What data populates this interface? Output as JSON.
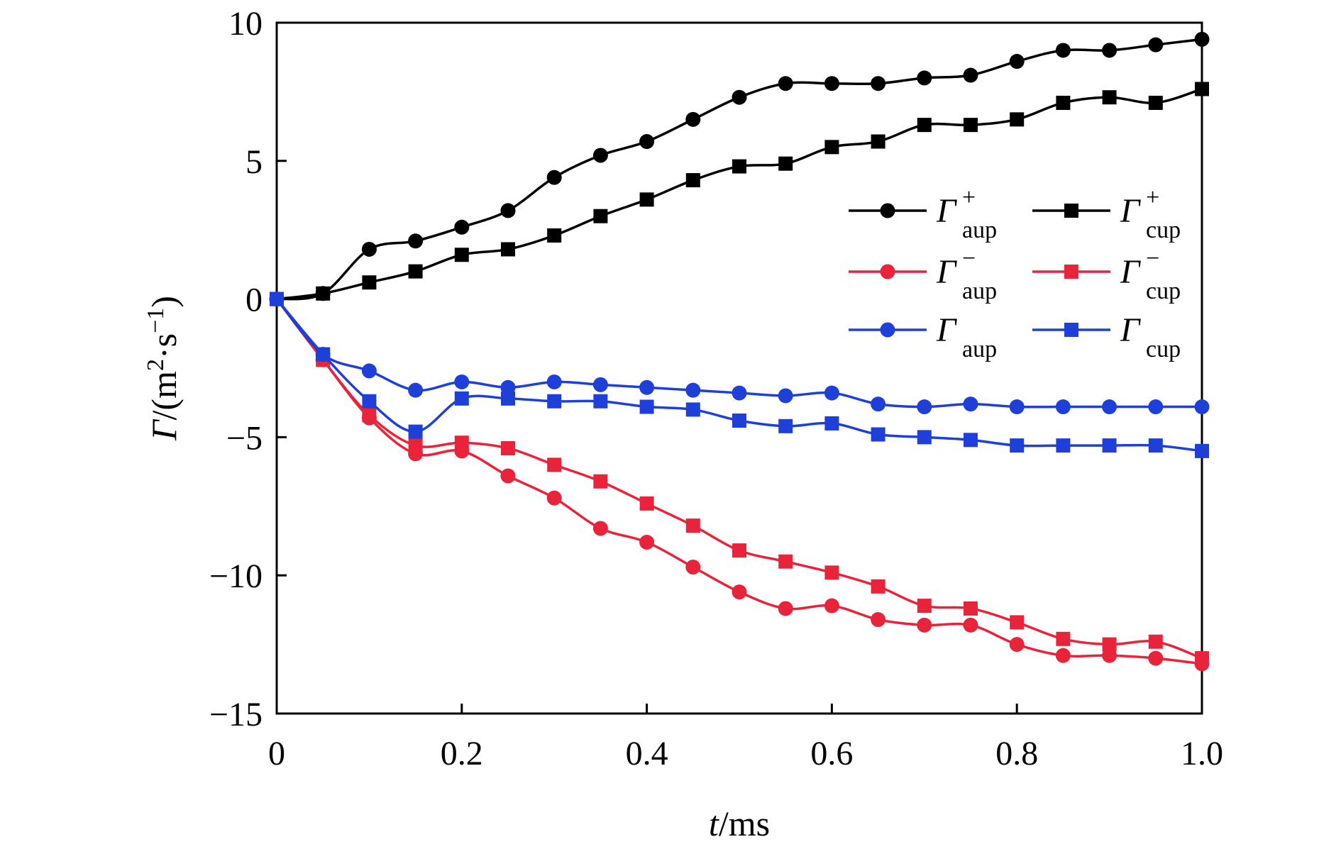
{
  "chart_data": {
    "type": "line",
    "title": "",
    "xlabel_italic": "t",
    "xlabel_unit": "/ms",
    "ylabel_italic": "Γ",
    "ylabel_unit_pre": "/(m",
    "ylabel_unit_sup1": "2",
    "ylabel_unit_mid": "·s",
    "ylabel_unit_sup2": "−1",
    "ylabel_unit_post": ")",
    "xlim": [
      0,
      1.0
    ],
    "ylim": [
      -15,
      10
    ],
    "xticks": [
      0,
      0.2,
      0.4,
      0.6,
      0.8,
      1.0
    ],
    "xtick_labels": [
      "0",
      "0.2",
      "0.4",
      "0.6",
      "0.8",
      "1.0"
    ],
    "yticks": [
      10,
      5,
      0,
      -5,
      -10,
      -15
    ],
    "ytick_labels": [
      "10",
      "5",
      "0",
      "−5",
      "−10",
      "−15"
    ],
    "grid": false,
    "legend_position": "right",
    "x": [
      0,
      0.05,
      0.1,
      0.15,
      0.2,
      0.25,
      0.3,
      0.35,
      0.4,
      0.45,
      0.5,
      0.55,
      0.6,
      0.65,
      0.7,
      0.75,
      0.8,
      0.85,
      0.9,
      0.95,
      1.0
    ],
    "series": [
      {
        "symbol": "Γ",
        "sup": "+",
        "sub": "aup",
        "marker": "circle",
        "color": "#000000",
        "values": [
          0,
          0.2,
          1.8,
          2.1,
          2.6,
          3.2,
          4.4,
          5.2,
          5.7,
          6.5,
          7.3,
          7.8,
          7.8,
          7.8,
          8.0,
          8.1,
          8.6,
          9.0,
          9.0,
          9.2,
          9.4
        ]
      },
      {
        "symbol": "Γ",
        "sup": "+",
        "sub": "cup",
        "marker": "square",
        "color": "#000000",
        "values": [
          0,
          0.2,
          0.6,
          1.0,
          1.6,
          1.8,
          2.3,
          3.0,
          3.6,
          4.3,
          4.8,
          4.9,
          5.5,
          5.7,
          6.3,
          6.3,
          6.5,
          7.1,
          7.3,
          7.1,
          7.6
        ]
      },
      {
        "symbol": "Γ",
        "sup": "−",
        "sub": "aup",
        "marker": "circle",
        "color": "#e8233a",
        "values": [
          0,
          -2.2,
          -4.3,
          -5.6,
          -5.5,
          -6.4,
          -7.2,
          -8.3,
          -8.8,
          -9.7,
          -10.6,
          -11.2,
          -11.1,
          -11.6,
          -11.8,
          -11.8,
          -12.5,
          -12.9,
          -12.9,
          -13.0,
          -13.2
        ]
      },
      {
        "symbol": "Γ",
        "sup": "−",
        "sub": "cup",
        "marker": "square",
        "color": "#e8233a",
        "values": [
          0,
          -2.2,
          -4.2,
          -5.3,
          -5.2,
          -5.4,
          -6.0,
          -6.6,
          -7.4,
          -8.2,
          -9.1,
          -9.5,
          -9.9,
          -10.4,
          -11.1,
          -11.2,
          -11.7,
          -12.3,
          -12.5,
          -12.4,
          -13.0
        ]
      },
      {
        "symbol": "Γ",
        "sup": "",
        "sub": "aup",
        "marker": "circle",
        "color": "#1f3fd9",
        "values": [
          0,
          -2.0,
          -2.6,
          -3.3,
          -3.0,
          -3.2,
          -3.0,
          -3.1,
          -3.2,
          -3.3,
          -3.4,
          -3.5,
          -3.4,
          -3.8,
          -3.9,
          -3.8,
          -3.9,
          -3.9,
          -3.9,
          -3.9,
          -3.9
        ]
      },
      {
        "symbol": "Γ",
        "sup": "",
        "sub": "cup",
        "marker": "square",
        "color": "#1f3fd9",
        "values": [
          0,
          -2.0,
          -3.7,
          -4.8,
          -3.6,
          -3.6,
          -3.7,
          -3.7,
          -3.9,
          -4.0,
          -4.4,
          -4.6,
          -4.5,
          -4.9,
          -5.0,
          -5.1,
          -5.3,
          -5.3,
          -5.3,
          -5.3,
          -5.5
        ]
      }
    ]
  }
}
